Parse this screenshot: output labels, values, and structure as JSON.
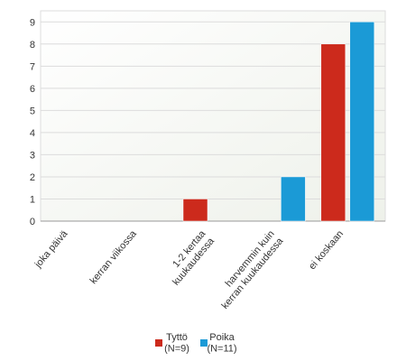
{
  "chart_data": {
    "type": "bar",
    "categories": [
      "joka päivä",
      "kerran viikossa",
      "1-2 kertaa\nkuukaudessa",
      "harvemmin kuin\nkerran kuukaudessa",
      "ei koskaan"
    ],
    "series": [
      {
        "name": "Tyttö\n(N=9)",
        "color": "#cc2a1c",
        "values": [
          0,
          0,
          1,
          0,
          8
        ]
      },
      {
        "name": "Poika\n(N=11)",
        "color": "#1b9ad6",
        "values": [
          0,
          0,
          0,
          2,
          9
        ]
      }
    ],
    "ylim": [
      0,
      9.5
    ],
    "yticks": [
      0,
      1,
      2,
      3,
      4,
      5,
      6,
      7,
      8,
      9
    ],
    "grid": true,
    "legend": "bottom"
  }
}
